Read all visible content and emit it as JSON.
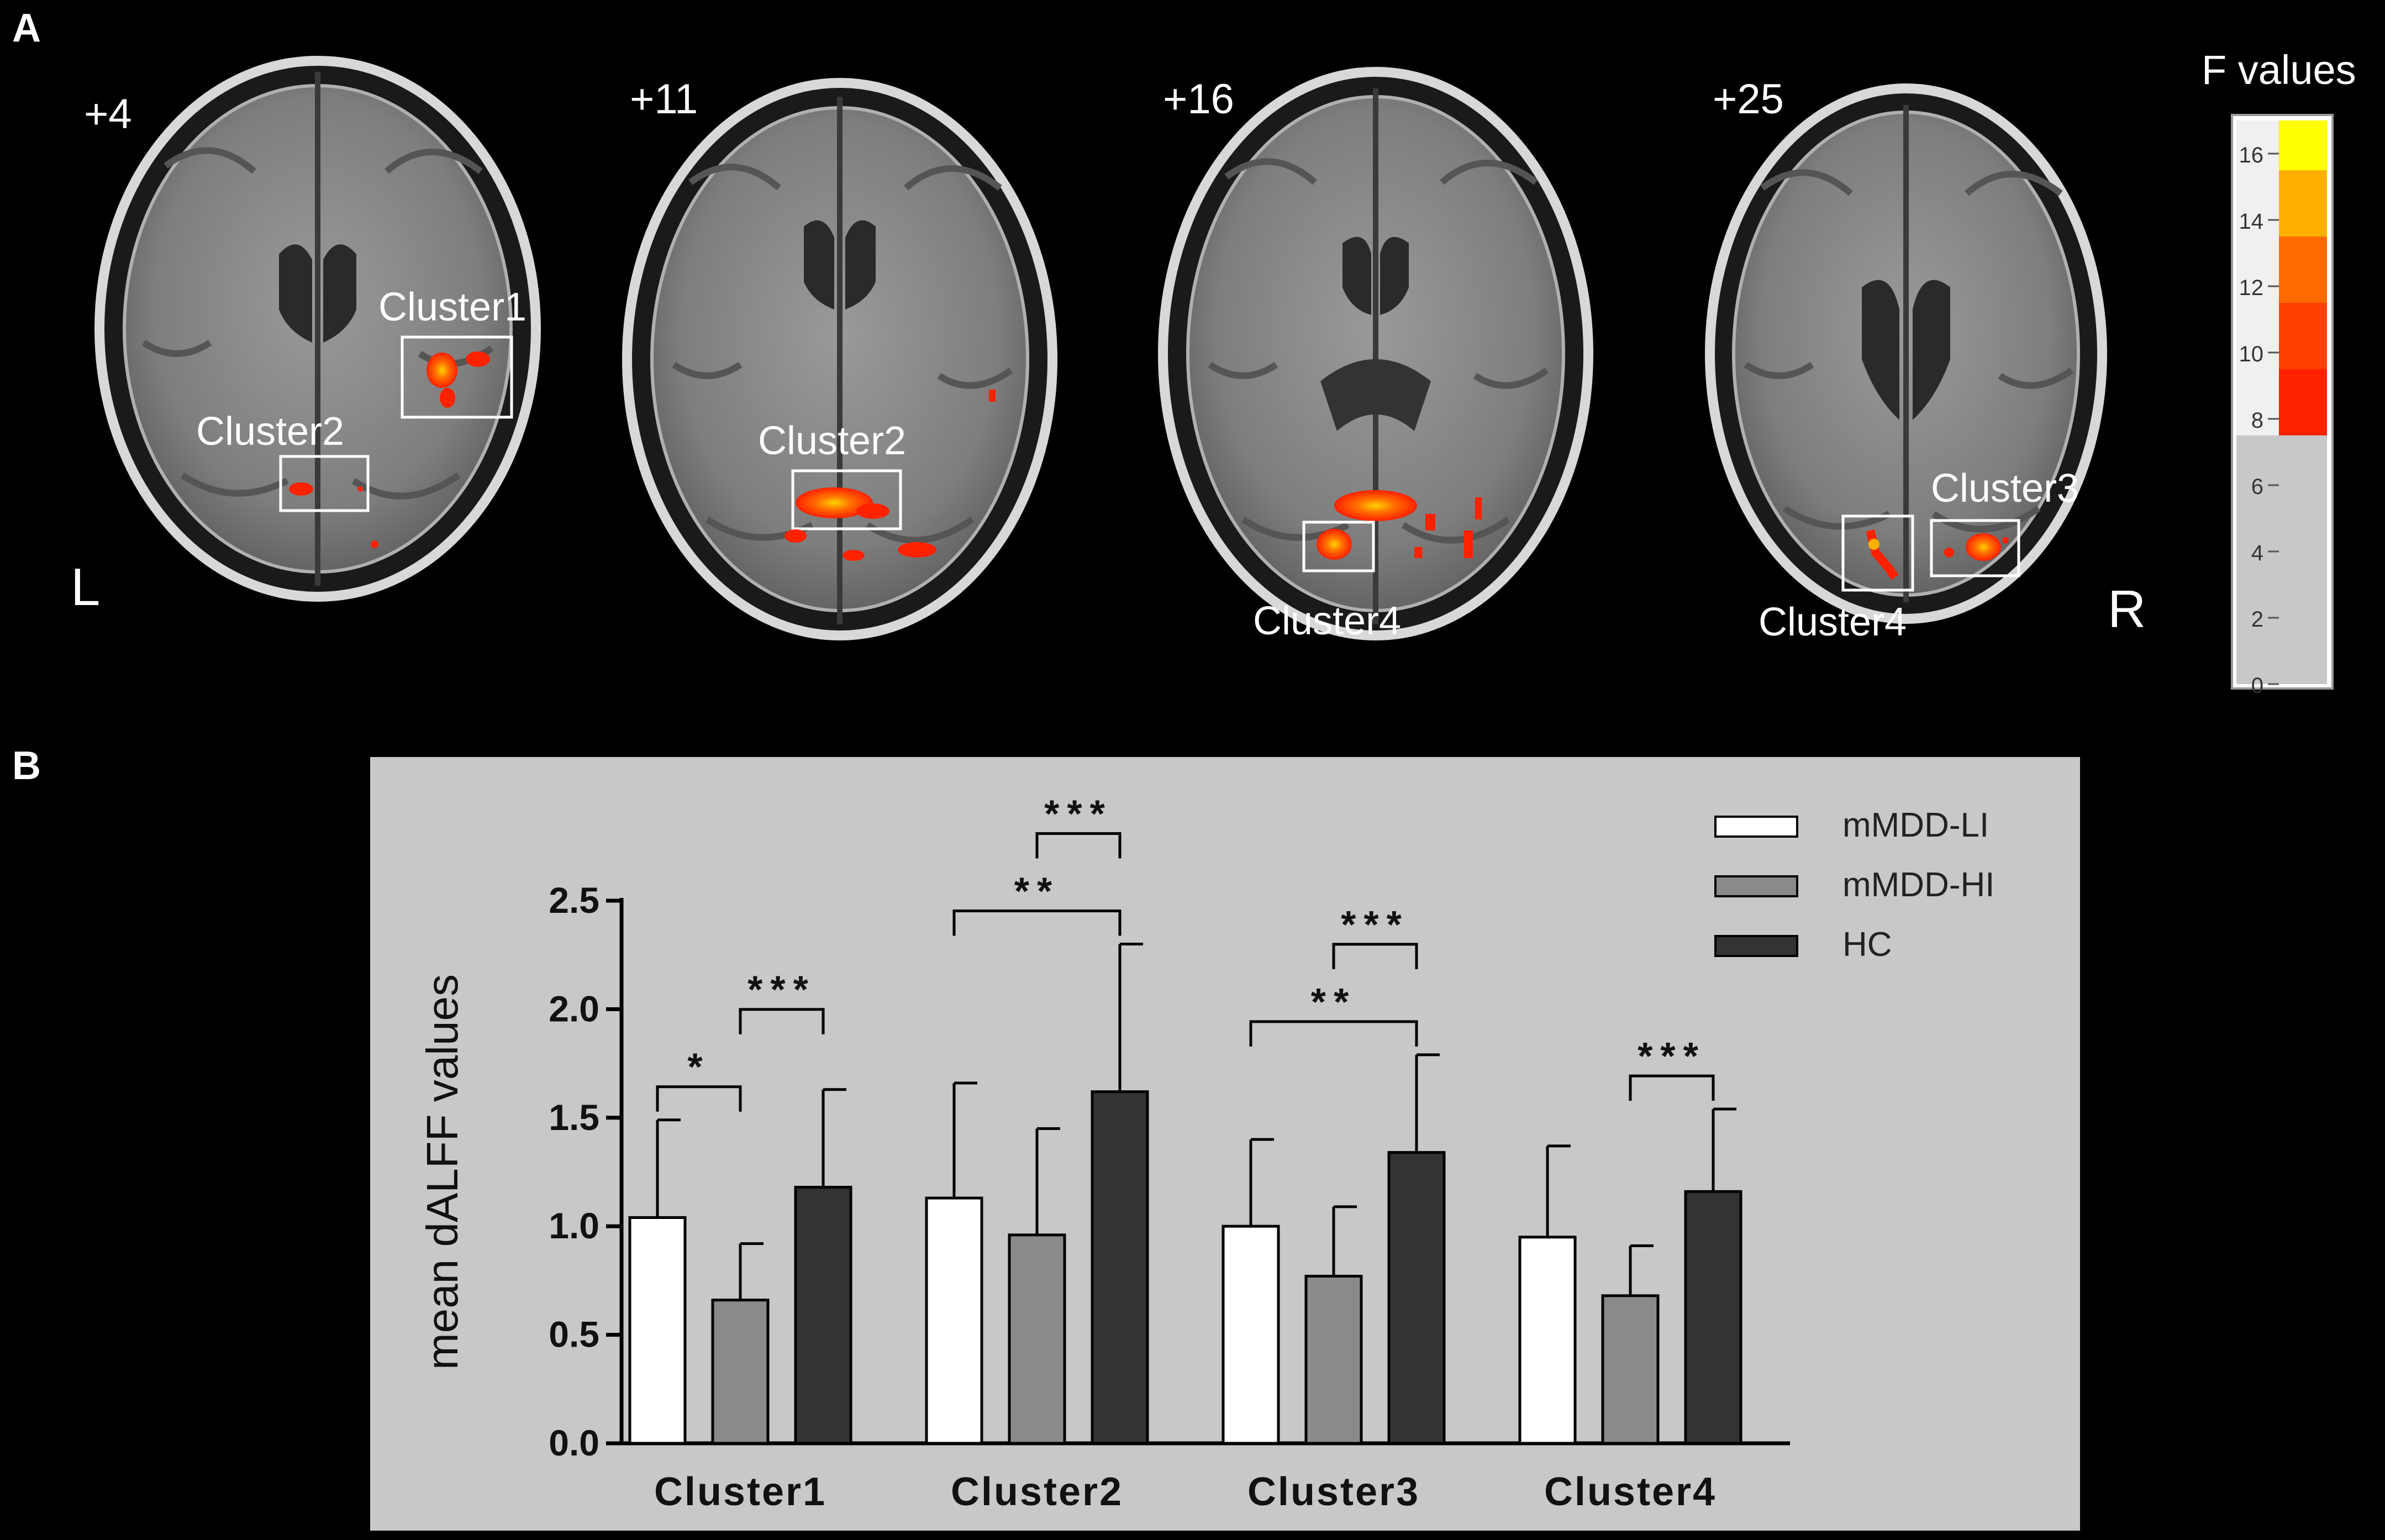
{
  "panels": {
    "a": {
      "letter": "A",
      "orientation_left": "L",
      "orientation_right": "R",
      "slices": [
        {
          "label": "+4",
          "clusters": [
            "Cluster1",
            "Cluster2"
          ]
        },
        {
          "label": "+11",
          "clusters": [
            "Cluster2"
          ]
        },
        {
          "label": "+16",
          "clusters": [
            "Cluster4"
          ]
        },
        {
          "label": "+25",
          "clusters": [
            "Cluster3",
            "Cluster4"
          ]
        }
      ],
      "colorbar": {
        "title": "F values",
        "ticks": [
          "0",
          "2",
          "4",
          "6",
          "8",
          "10",
          "12",
          "14",
          "16"
        ],
        "range": [
          0,
          17
        ],
        "threshold": 7.5,
        "colors": {
          "below_threshold": "#c8c8c8",
          "low": "#ff2200",
          "mid": "#ff6a00",
          "high": "#ffb000",
          "max": "#ffff00"
        }
      }
    },
    "b": {
      "letter": "B"
    }
  },
  "chart_data": {
    "type": "bar",
    "categories": [
      "Cluster1",
      "Cluster2",
      "Cluster3",
      "Cluster4"
    ],
    "ylabel": "mean dALFF values",
    "ylim": [
      0,
      2.5
    ],
    "yticks": [
      "0.0",
      "0.5",
      "1.0",
      "1.5",
      "2.0",
      "2.5"
    ],
    "legend_position": "top-right",
    "background": "#c8c8c8",
    "series": [
      {
        "name": "mMDD-LI",
        "color": "#ffffff",
        "values": [
          1.04,
          1.13,
          1.0,
          0.95
        ],
        "errors": [
          0.45,
          0.53,
          0.4,
          0.42
        ]
      },
      {
        "name": "mMDD-HI",
        "color": "#8a8a8a",
        "values": [
          0.66,
          0.96,
          0.77,
          0.68
        ],
        "errors": [
          0.26,
          0.49,
          0.32,
          0.23
        ]
      },
      {
        "name": "HC",
        "color": "#333333",
        "values": [
          1.18,
          1.62,
          1.34,
          1.16
        ],
        "errors": [
          0.45,
          0.68,
          0.45,
          0.38
        ]
      }
    ],
    "significance": [
      {
        "category": 0,
        "from": 0,
        "to": 1,
        "label": "*"
      },
      {
        "category": 0,
        "from": 1,
        "to": 2,
        "label": "***"
      },
      {
        "category": 1,
        "from": 0,
        "to": 2,
        "label": "**"
      },
      {
        "category": 1,
        "from": 1,
        "to": 2,
        "label": "***"
      },
      {
        "category": 2,
        "from": 0,
        "to": 2,
        "label": "**"
      },
      {
        "category": 2,
        "from": 1,
        "to": 2,
        "label": "***"
      },
      {
        "category": 3,
        "from": 1,
        "to": 2,
        "label": "***"
      }
    ]
  }
}
